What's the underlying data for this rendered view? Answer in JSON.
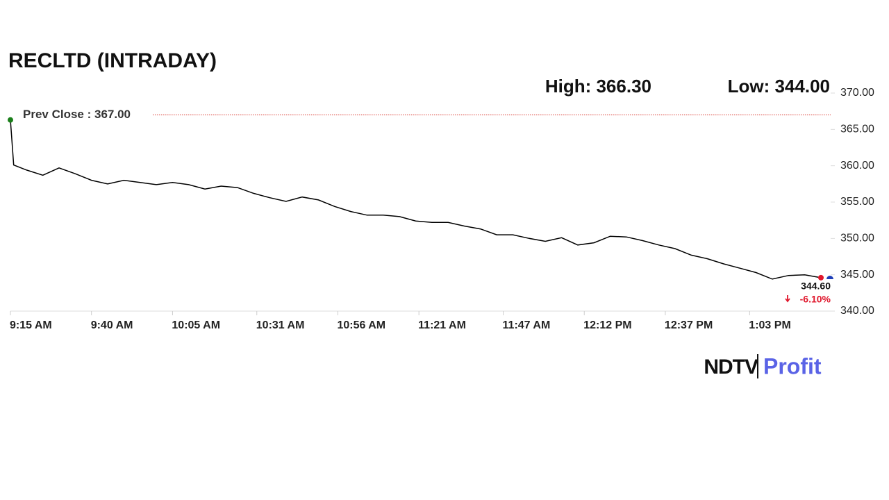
{
  "chart_data": {
    "type": "line",
    "title": "RECLTD (INTRADAY)",
    "high_label": "High: 366.30",
    "low_label": "Low: 344.00",
    "prev_close": {
      "value": 367,
      "label": "Prev Close : 367.00"
    },
    "last_price_label": "344.60",
    "change_label": "-6.10%",
    "color": "#000000",
    "start_color": "#1a7f1a",
    "end_color": "#e0182d",
    "prev_close_color": "#d9362b",
    "x": [
      "9:15 AM",
      "9:16 AM",
      "9:20 AM",
      "9:25 AM",
      "9:30 AM",
      "9:35 AM",
      "9:40 AM",
      "9:45 AM",
      "9:50 AM",
      "9:55 AM",
      "10:00 AM",
      "10:05 AM",
      "10:10 AM",
      "10:15 AM",
      "10:20 AM",
      "10:25 AM",
      "10:30 AM",
      "10:35 AM",
      "10:40 AM",
      "10:45 AM",
      "10:50 AM",
      "10:55 AM",
      "11:00 AM",
      "11:05 AM",
      "11:10 AM",
      "11:15 AM",
      "11:20 AM",
      "11:25 AM",
      "11:30 AM",
      "11:35 AM",
      "11:40 AM",
      "11:45 AM",
      "11:50 AM",
      "11:55 AM",
      "12:00 PM",
      "12:05 PM",
      "12:10 PM",
      "12:15 PM",
      "12:20 PM",
      "12:25 PM",
      "12:30 PM",
      "12:35 PM",
      "12:40 PM",
      "12:45 PM",
      "12:50 PM",
      "12:55 PM",
      "1:00 PM",
      "1:05 PM",
      "1:10 PM",
      "1:15 PM",
      "1:20 PM",
      "1:25 PM"
    ],
    "values": [
      366.3,
      360.1,
      359.4,
      358.7,
      359.7,
      358.9,
      358.0,
      357.5,
      358.0,
      357.7,
      357.4,
      357.7,
      357.4,
      356.8,
      357.2,
      357.0,
      356.2,
      355.6,
      355.1,
      355.7,
      355.3,
      354.4,
      353.7,
      353.2,
      353.2,
      353.0,
      352.4,
      352.2,
      352.2,
      351.7,
      351.3,
      350.5,
      350.5,
      350.0,
      349.6,
      350.1,
      349.1,
      349.4,
      350.3,
      350.2,
      349.7,
      349.1,
      348.6,
      347.7,
      347.2,
      346.5,
      345.9,
      345.3,
      344.4,
      344.9,
      345.0,
      344.6
    ],
    "xlim": [
      "9:15 AM",
      "1:28 PM"
    ],
    "xticks": [
      "9:15 AM",
      "9:40 AM",
      "10:05 AM",
      "10:31 AM",
      "10:56 AM",
      "11:21 AM",
      "11:47 AM",
      "12:12 PM",
      "12:37 PM",
      "1:03 PM"
    ],
    "ylim": [
      340,
      370
    ],
    "yticks": [
      {
        "value": 340,
        "label": "340.00"
      },
      {
        "value": 345,
        "label": "345.00"
      },
      {
        "value": 350,
        "label": "350.00"
      },
      {
        "value": 355,
        "label": "355.00"
      },
      {
        "value": 360,
        "label": "360.00"
      },
      {
        "value": 365,
        "label": "365.00"
      },
      {
        "value": 370,
        "label": "370.00"
      }
    ]
  },
  "brand": {
    "name": "NDTV",
    "product": "Profit"
  }
}
